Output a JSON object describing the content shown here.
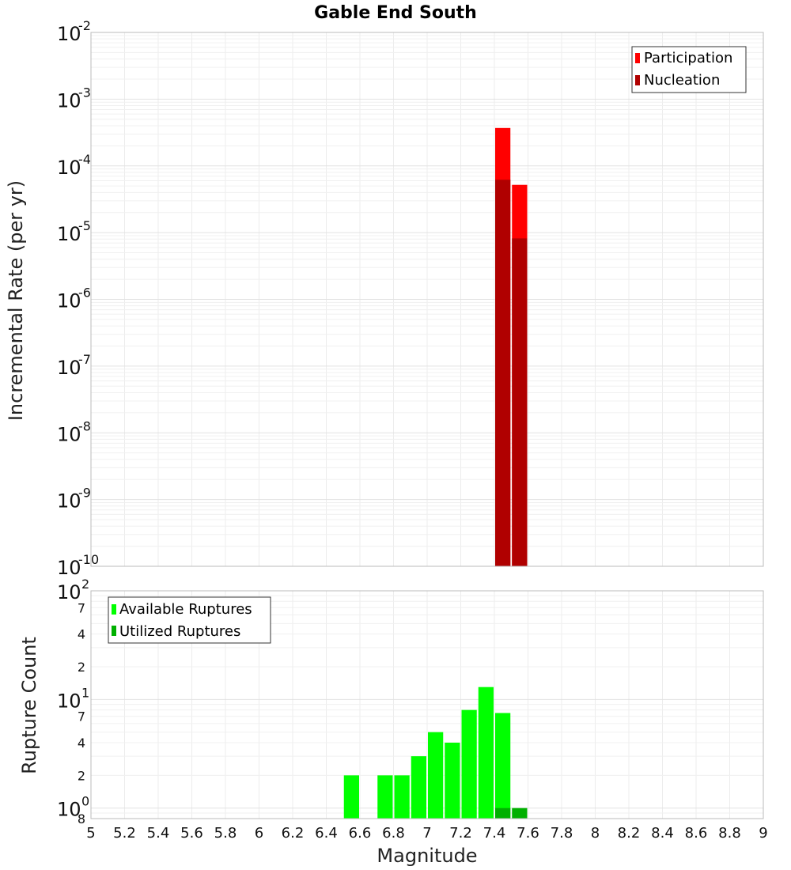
{
  "chart_data": [
    {
      "type": "bar",
      "title": "Gable End South",
      "xlabel": "Magnitude",
      "ylabel": "Incremental Rate (per yr)",
      "yscale": "log",
      "xlim": [
        5,
        9
      ],
      "ylim": [
        1e-10,
        0.01
      ],
      "y_tick_exponents": [
        "-10",
        "-9",
        "-8",
        "-7",
        "-6",
        "-5",
        "-4",
        "-3",
        "-2"
      ],
      "y_tick_base": "10",
      "bin_width": 0.1,
      "legend_position": "top-right",
      "colors": {
        "Participation": "#ff0000",
        "Nucleation": "#b00000"
      },
      "series": [
        {
          "name": "Participation",
          "x": [
            7.45,
            7.55
          ],
          "values": [
            0.00037,
            5.2e-05
          ]
        },
        {
          "name": "Nucleation",
          "x": [
            7.45,
            7.55
          ],
          "values": [
            6.2e-05,
            8.2e-06
          ]
        }
      ]
    },
    {
      "type": "bar",
      "xlabel": "Magnitude",
      "ylabel": "Rupture Count",
      "yscale": "log",
      "xlim": [
        5,
        9
      ],
      "ylim": [
        0.8,
        100
      ],
      "x_ticks": [
        "5",
        "5.2",
        "5.4",
        "5.6",
        "5.8",
        "6",
        "6.2",
        "6.4",
        "6.6",
        "6.8",
        "7",
        "7.2",
        "7.4",
        "7.6",
        "7.8",
        "8",
        "8.2",
        "8.4",
        "8.6",
        "8.8",
        "9"
      ],
      "y_minor_labels": [
        "8",
        "2",
        "4",
        "7",
        "2",
        "4",
        "7"
      ],
      "y_major_base": "10",
      "y_major_exponents": [
        "0",
        "1",
        "2"
      ],
      "bin_width": 0.1,
      "legend_position": "top-left",
      "colors": {
        "Available Ruptures": "#00ff00",
        "Utilized Ruptures": "#00b000"
      },
      "series": [
        {
          "name": "Available Ruptures",
          "x": [
            6.55,
            6.75,
            6.85,
            6.95,
            7.05,
            7.15,
            7.25,
            7.35,
            7.45
          ],
          "values": [
            2,
            2,
            2,
            3,
            5,
            4,
            8,
            13,
            7.5
          ]
        },
        {
          "name": "Utilized Ruptures",
          "x": [
            7.45,
            7.55
          ],
          "values": [
            1,
            1
          ]
        }
      ]
    }
  ]
}
